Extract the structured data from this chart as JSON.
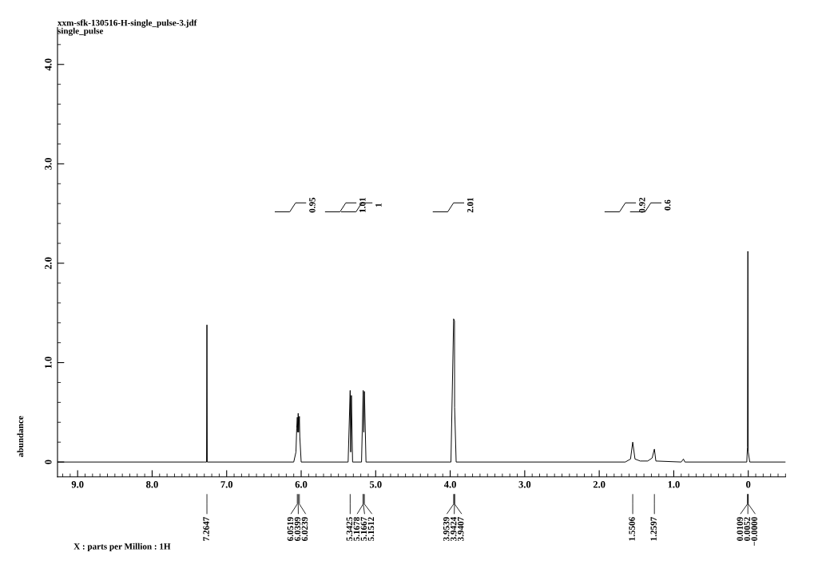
{
  "chart_data": {
    "type": "line",
    "title": "xxm-sfk-130516-H-single_pulse-3.jdf",
    "subtitle": "single_pulse",
    "ylabel": "abundance",
    "series": [
      {
        "color": "#000000",
        "x": [
          9.27,
          7.3,
          7.27,
          7.2647,
          7.26,
          6.1,
          6.07,
          6.0599,
          6.0519,
          6.045,
          6.0399,
          6.035,
          6.0239,
          6.018,
          6.0,
          5.37,
          5.3425,
          5.335,
          5.3258,
          5.31,
          5.19,
          5.1678,
          5.1595,
          5.1512,
          5.13,
          3.99,
          3.9539,
          3.9424,
          3.9407,
          3.92,
          1.65,
          1.58,
          1.5506,
          1.52,
          1.45,
          1.35,
          1.29,
          1.2597,
          1.24,
          0.9,
          0.87,
          0.85,
          0.02,
          0.0109,
          0.0052,
          0.0,
          -0.02,
          -0.5
        ],
        "values": [
          0,
          0,
          0,
          1.38,
          0,
          0,
          0.1,
          0.34,
          0.45,
          0.3,
          0.49,
          0.3,
          0.46,
          0.25,
          0,
          0,
          0.72,
          0.1,
          0.67,
          0,
          0,
          0.72,
          0.3,
          0.71,
          0,
          0,
          1.44,
          1.42,
          0.55,
          0,
          0,
          0.03,
          0.2,
          0.03,
          0.01,
          0.01,
          0.04,
          0.13,
          0.01,
          0,
          0.03,
          0,
          0,
          0.15,
          2.12,
          0.1,
          0,
          0
        ]
      }
    ],
    "xlim": [
      9.27,
      -0.5
    ],
    "ylim": [
      -0.15,
      4.37
    ],
    "xticks": [
      {
        "value": 9,
        "label": "9.0"
      },
      {
        "value": 8,
        "label": "8.0"
      },
      {
        "value": 7,
        "label": "7.0"
      },
      {
        "value": 6,
        "label": "6.0"
      },
      {
        "value": 5,
        "label": "5.0"
      },
      {
        "value": 4,
        "label": "4.0"
      },
      {
        "value": 3,
        "label": "3.0"
      },
      {
        "value": 2,
        "label": "2.0"
      },
      {
        "value": 1,
        "label": "1.0"
      },
      0
    ],
    "yticks": [
      0,
      {
        "value": 1,
        "label": "1.0"
      },
      {
        "value": 2,
        "label": "2.0"
      },
      {
        "value": 3,
        "label": "3.0"
      },
      {
        "value": 4,
        "label": "4.0"
      }
    ],
    "grid": false,
    "legend": false,
    "marker": "none",
    "line_style": "solid",
    "annotations": [
      "X : parts per Million : 1H",
      "0.95",
      "1.01",
      "1",
      "2.01",
      "0.92",
      "0.6",
      {
        "text": "7.2647",
        "x": 7.2647
      },
      {
        "text": "6.0519",
        "x": 6.0519
      },
      {
        "text": "6.0399",
        "x": 6.0399
      },
      {
        "text": "6.0239",
        "x": 6.0239
      },
      {
        "text": "5.3425",
        "x": 5.3425
      },
      {
        "text": "5.1678",
        "x": 5.1678
      },
      {
        "text": "5.1667",
        "x": 5.1667
      },
      {
        "text": "5.1512",
        "x": 5.1512
      },
      {
        "text": "3.9539",
        "x": 3.9539
      },
      {
        "text": "3.9424",
        "x": 3.9424
      },
      {
        "text": "3.9407",
        "x": 3.9407
      },
      {
        "text": "1.5506",
        "x": 1.5506
      },
      {
        "text": "1.2597",
        "x": 1.2597
      },
      {
        "text": "0.0109",
        "x": 0.0109
      },
      {
        "text": "0.0052",
        "x": 0.0052
      },
      {
        "text": "−0.0000",
        "x": -0.0
      }
    ]
  }
}
